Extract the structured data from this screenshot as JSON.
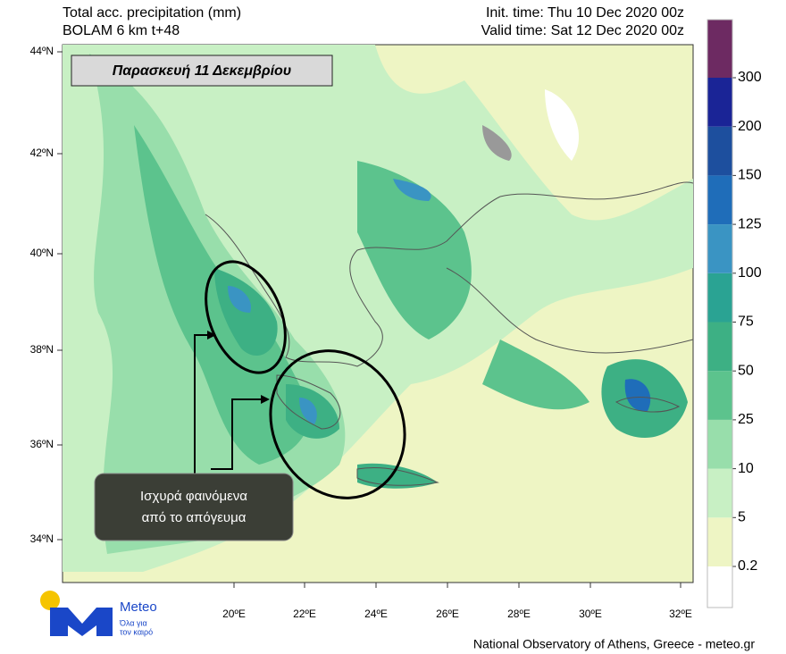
{
  "header": {
    "title": "Total acc. precipitation (mm)",
    "model": "BOLAM 6 km t+48",
    "init_time": "Init. time: Thu 10 Dec 2020 00z",
    "valid_time": "Valid time: Sat 12 Dec 2020 00z"
  },
  "banner": "Παρασκευή 11 Δεκεμβρίου",
  "callout": {
    "lines": [
      "Ισχυρά φαινόμενα",
      "από το απόγευμα"
    ]
  },
  "map": {
    "lat_labels": [
      "44ºN",
      "42ºN",
      "40ºN",
      "38ºN",
      "36ºN",
      "34ºN"
    ],
    "lon_labels": [
      "20ºE",
      "22ºE",
      "24ºE",
      "26ºE",
      "28ºE",
      "30ºE",
      "32ºE"
    ]
  },
  "legend": {
    "levels": [
      0.2,
      5,
      10,
      25,
      50,
      75,
      100,
      125,
      150,
      200,
      300
    ],
    "colors": [
      "#eef5c4",
      "#c8f0c4",
      "#98deab",
      "#5cc38d",
      "#3db084",
      "#2aa393",
      "#3a94c3",
      "#1f6db9",
      "#1d4f9e",
      "#1a2496",
      "#6d2a62"
    ]
  },
  "logo": {
    "name": "Meteo",
    "tagline": [
      "Όλα για",
      "τον καιρό"
    ]
  },
  "footer": "National Observatory of Athens, Greece - meteo.gr"
}
